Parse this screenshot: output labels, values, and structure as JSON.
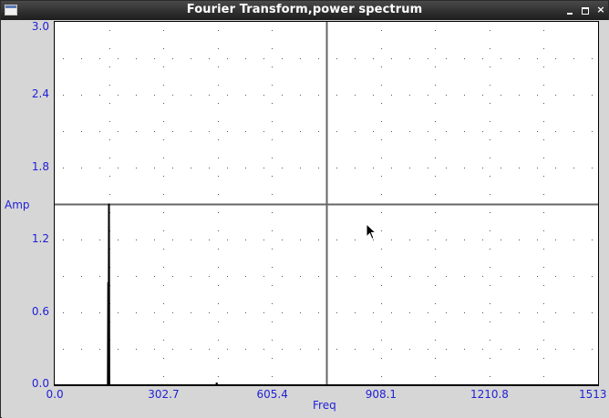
{
  "window": {
    "title": "Fourier Transform,power spectrum",
    "menu_icon": "window-menu-icon",
    "minimize_icon": "minimize-icon",
    "maximize_icon": "maximize-icon",
    "close_glyph": "×"
  },
  "chart_data": {
    "type": "line",
    "title": "",
    "xlabel": "Freq",
    "ylabel": "Amp",
    "xlim": [
      0,
      1513
    ],
    "ylim": [
      0,
      3.0
    ],
    "x_tick_labels": [
      "0.0",
      "302.7",
      "605.4",
      "908.1",
      "1210.8",
      "1513"
    ],
    "x_ticks": [
      0,
      302.7,
      605.4,
      908.1,
      1210.8,
      1513
    ],
    "y_tick_labels": [
      "0.0",
      "0.6",
      "1.2",
      "1.8",
      "2.4",
      "3.0"
    ],
    "y_ticks": [
      0,
      0.6,
      1.2,
      1.8,
      2.4,
      3.0
    ],
    "grid": "dotted",
    "crosshair": {
      "x": 757,
      "y": 1.5
    },
    "series": [
      {
        "values": [
          [
            0,
            0.0
          ],
          [
            148,
            0.0
          ],
          [
            149,
            0.85
          ],
          [
            150,
            0.0
          ],
          [
            151,
            1.5
          ],
          [
            152,
            0.0
          ],
          [
            450,
            0.0
          ],
          [
            451,
            0.02
          ],
          [
            452,
            0.0
          ],
          [
            1513,
            0.0
          ]
        ]
      }
    ]
  },
  "pointer": {
    "icon": "mouse-pointer-icon"
  }
}
